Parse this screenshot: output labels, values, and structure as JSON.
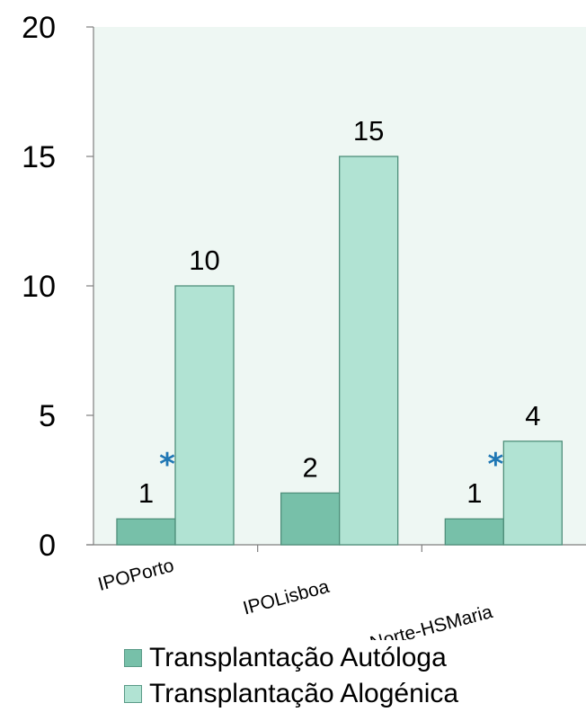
{
  "chart_data": {
    "type": "bar",
    "categories": [
      "IPOPorto",
      "IPOLisboa",
      "C. H.L.Norte-HSMaria"
    ],
    "series": [
      {
        "name": "Transplantação Autóloga",
        "values": [
          1,
          2,
          1
        ],
        "color": "#77c0a9"
      },
      {
        "name": "Transplantação Alogénica",
        "values": [
          10,
          15,
          4
        ],
        "color": "#b1e3d3"
      }
    ],
    "y_ticks": [
      "0",
      "5",
      "10",
      "15",
      "20"
    ],
    "ylim": [
      0,
      20
    ],
    "grid": false,
    "legend_position": "bottom",
    "plot_background": "#eef7f3",
    "annotations": [
      {
        "text": "*",
        "category": "IPOPorto",
        "color": "#1f77b4"
      },
      {
        "text": "*",
        "category": "C. H.L.Norte-HSMaria",
        "color": "#1f77b4"
      }
    ]
  }
}
